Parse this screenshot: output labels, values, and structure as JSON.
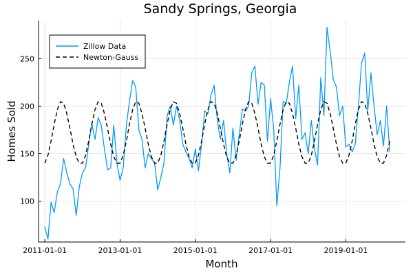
{
  "chart_data": {
    "type": "line",
    "title": "Sandy Springs, Georgia",
    "xlabel": "Month",
    "ylabel": "Homes Sold",
    "x_start": "2011-01-01",
    "x_step": "month",
    "xlim": [
      "2010-11-01",
      "2020-08-01"
    ],
    "ylim": [
      57,
      290
    ],
    "x_ticks": [
      "2011-01-01",
      "2013-01-01",
      "2015-01-01",
      "2017-01-01",
      "2019-01-01"
    ],
    "y_ticks": [
      100,
      150,
      200,
      250
    ],
    "grid": true,
    "legend_position": "top-left",
    "series": [
      {
        "name": "Zillow Data",
        "color": "#009af9",
        "style": "solid",
        "values": [
          73,
          60,
          99,
          88,
          110,
          118,
          145,
          130,
          118,
          113,
          85,
          115,
          130,
          135,
          160,
          182,
          165,
          188,
          180,
          155,
          133,
          135,
          180,
          140,
          122,
          135,
          180,
          205,
          227,
          220,
          175,
          165,
          135,
          150,
          145,
          140,
          112,
          125,
          140,
          190,
          200,
          180,
          200,
          185,
          160,
          152,
          145,
          135,
          155,
          132,
          160,
          195,
          192,
          212,
          222,
          185,
          165,
          185,
          150,
          130,
          177,
          143,
          170,
          197,
          195,
          200,
          235,
          242,
          202,
          225,
          222,
          163,
          208,
          175,
          95,
          135,
          205,
          203,
          225,
          242,
          187,
          222,
          165,
          172,
          150,
          185,
          155,
          138,
          230,
          190,
          283,
          258,
          228,
          220,
          190,
          200,
          157,
          160,
          152,
          160,
          200,
          245,
          256,
          195,
          235,
          200,
          170,
          185,
          158,
          200,
          152
        ]
      },
      {
        "name": "Newton-Gauss",
        "color": "#000000",
        "style": "dashed",
        "values": [
          140,
          150,
          170,
          192,
          205,
          203,
          190,
          170,
          150,
          140
        ]
      }
    ]
  }
}
